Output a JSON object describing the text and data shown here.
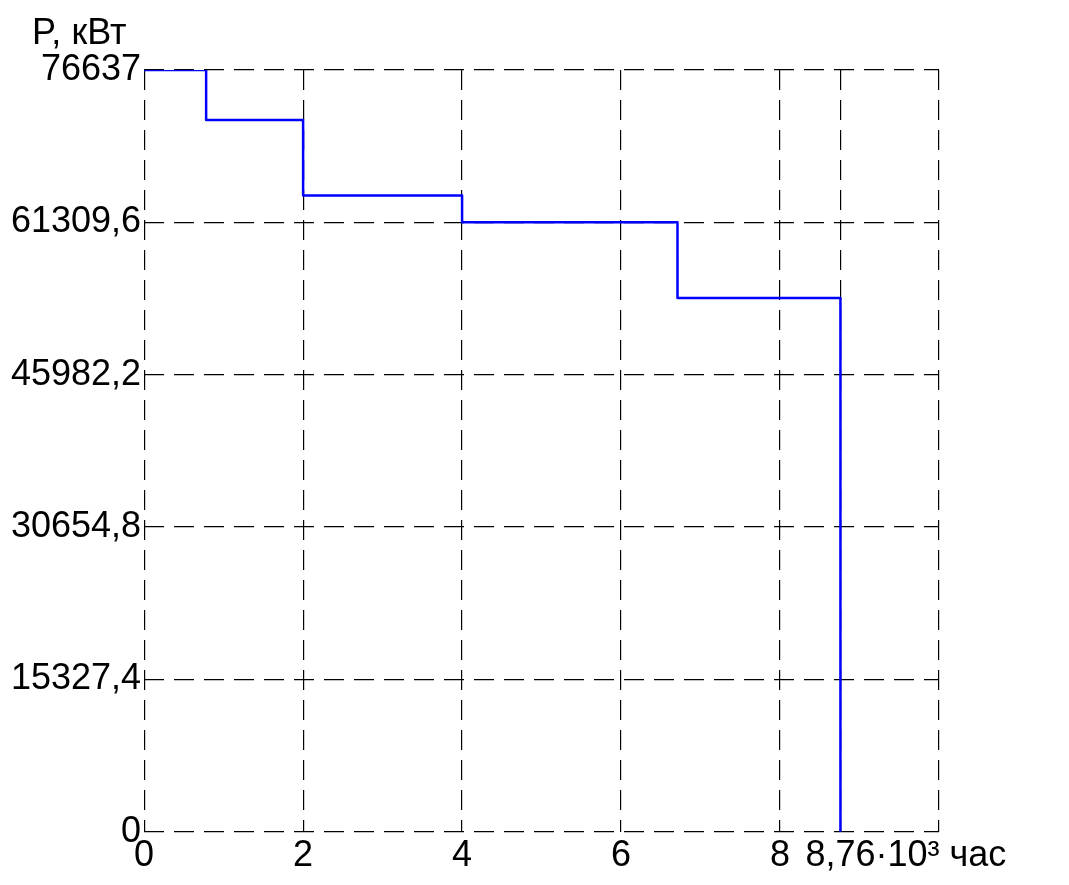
{
  "chart_data": {
    "type": "step",
    "ylabel": "P, кВт",
    "xlabel": "·10³ час",
    "x": [
      0,
      0.78,
      2,
      4,
      6.71,
      8.76
    ],
    "series": [
      {
        "color": "#0000ff",
        "values": [
          76637,
          71600,
          64000,
          61309.6,
          53700,
          0
        ]
      }
    ],
    "xlim": [
      0,
      10
    ],
    "xticks": [
      0,
      2,
      4,
      6,
      8,
      {
        "value": 8.76,
        "label": "8,76"
      },
      {
        "value": 10,
        "label": null
      }
    ],
    "ylim": [
      0,
      76637
    ],
    "yticks": [
      0,
      {
        "value": 15327.4,
        "label": "15327,4"
      },
      {
        "value": 30654.8,
        "label": "30654,8"
      },
      {
        "value": 45982.2,
        "label": "45982,2"
      },
      {
        "value": 61309.6,
        "label": "61309,6"
      },
      76637
    ],
    "grid": true,
    "marker": "none",
    "line_style": "solid",
    "legend": false
  }
}
